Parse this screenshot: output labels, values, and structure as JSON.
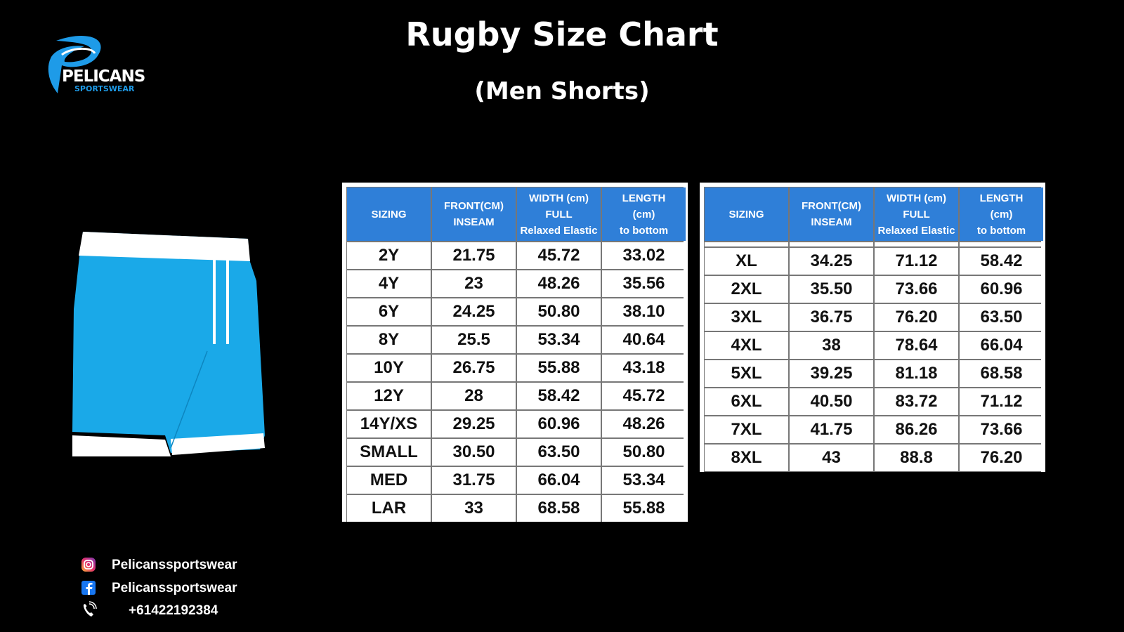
{
  "header": {
    "title": "Rugby Size Chart",
    "subtitle": "(Men Shorts)"
  },
  "logo": {
    "name": "PELICANS",
    "tagline": "SPORTSWEAR"
  },
  "tables": [
    {
      "headers": [
        [
          "SIZING"
        ],
        [
          "FRONT(CM)",
          "INSEAM"
        ],
        [
          "WIDTH (cm)",
          "FULL",
          "Relaxed Elastic"
        ],
        [
          "LENGTH",
          "(cm)",
          "to bottom"
        ]
      ],
      "rows": [
        [
          "2Y",
          "21.75",
          "45.72",
          "33.02"
        ],
        [
          "4Y",
          "23",
          "48.26",
          "35.56"
        ],
        [
          "6Y",
          "24.25",
          "50.80",
          "38.10"
        ],
        [
          "8Y",
          "25.5",
          "53.34",
          "40.64"
        ],
        [
          "10Y",
          "26.75",
          "55.88",
          "43.18"
        ],
        [
          "12Y",
          "28",
          "58.42",
          "45.72"
        ],
        [
          "14Y/XS",
          "29.25",
          "60.96",
          "48.26"
        ],
        [
          "SMALL",
          "30.50",
          "63.50",
          "50.80"
        ],
        [
          "MED",
          "31.75",
          "66.04",
          "53.34"
        ],
        [
          "LAR",
          "33",
          "68.58",
          "55.88"
        ]
      ]
    },
    {
      "headers": [
        [
          "SIZING"
        ],
        [
          "FRONT(CM)",
          "INSEAM"
        ],
        [
          "WIDTH (cm)",
          "FULL",
          "Relaxed Elastic"
        ],
        [
          "LENGTH",
          "(cm)",
          "to bottom"
        ]
      ],
      "rows": [
        [
          "XL",
          "34.25",
          "71.12",
          "58.42"
        ],
        [
          "2XL",
          "35.50",
          "73.66",
          "60.96"
        ],
        [
          "3XL",
          "36.75",
          "76.20",
          "63.50"
        ],
        [
          "4XL",
          "38",
          "78.64",
          "66.04"
        ],
        [
          "5XL",
          "39.25",
          "81.18",
          "68.58"
        ],
        [
          "6XL",
          "40.50",
          "83.72",
          "71.12"
        ],
        [
          "7XL",
          "41.75",
          "86.26",
          "73.66"
        ],
        [
          "8XL",
          "43",
          "88.8",
          "76.20"
        ]
      ]
    }
  ],
  "contacts": [
    "Pelicanssportswear",
    "Pelicanssportswear",
    "+61422192384"
  ]
}
